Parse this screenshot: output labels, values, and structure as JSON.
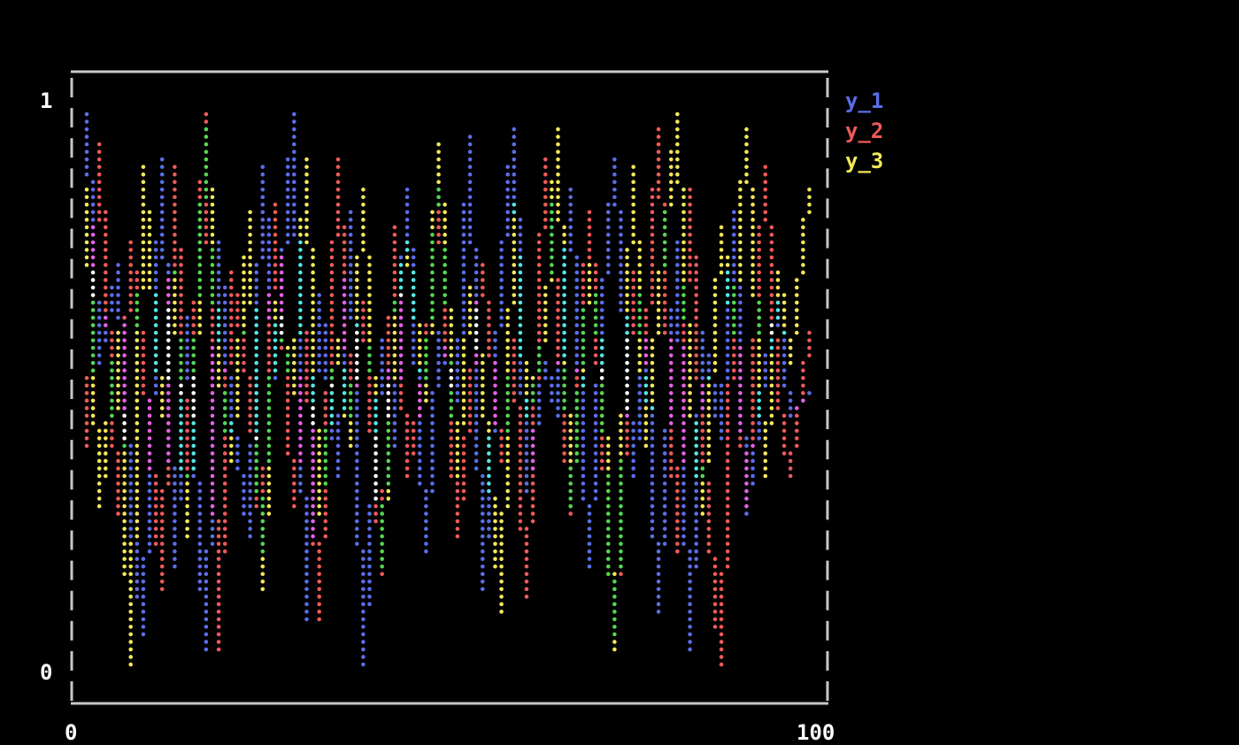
{
  "chart_data": {
    "type": "line",
    "title": "",
    "xlabel": "",
    "ylabel": "",
    "xlim": [
      0,
      100
    ],
    "ylim": [
      0,
      1
    ],
    "x_ticks": [
      "0",
      "100"
    ],
    "y_ticks": [
      "1",
      "0"
    ],
    "grid": false,
    "legend_placement": "top-right",
    "x": [
      0,
      2,
      4,
      6,
      8,
      10,
      12,
      14,
      16,
      18,
      20,
      22,
      24,
      26,
      28,
      30,
      32,
      34,
      36,
      38,
      40,
      42,
      44,
      46,
      48,
      50,
      52,
      54,
      56,
      58,
      60,
      62,
      64,
      66,
      68,
      70,
      72,
      74,
      76,
      78,
      80,
      82,
      84,
      86,
      88,
      90,
      92,
      94,
      96,
      98
    ],
    "series": [
      {
        "name": "y_1",
        "color": "#5b6ee8",
        "values": [
          0.98,
          0.55,
          0.72,
          0.3,
          0.08,
          0.9,
          0.2,
          0.62,
          0.05,
          0.75,
          0.45,
          0.25,
          0.88,
          0.52,
          0.97,
          0.1,
          0.66,
          0.35,
          0.8,
          0.02,
          0.58,
          0.4,
          0.85,
          0.22,
          0.6,
          0.48,
          0.93,
          0.15,
          0.7,
          0.95,
          0.33,
          0.55,
          0.45,
          0.85,
          0.2,
          0.62,
          0.9,
          0.35,
          0.58,
          0.12,
          0.75,
          0.05,
          0.6,
          0.42,
          0.8,
          0.28,
          0.55,
          0.65,
          0.45,
          0.5
        ]
      },
      {
        "name": "y_2",
        "color": "#f05a5a",
        "values": [
          0.4,
          0.92,
          0.28,
          0.75,
          0.55,
          0.15,
          0.88,
          0.35,
          0.98,
          0.05,
          0.7,
          0.5,
          0.22,
          0.82,
          0.3,
          0.6,
          0.1,
          0.9,
          0.45,
          0.65,
          0.18,
          0.78,
          0.35,
          0.55,
          0.85,
          0.25,
          0.48,
          0.72,
          0.38,
          0.58,
          0.14,
          0.9,
          0.62,
          0.28,
          0.8,
          0.45,
          0.08,
          0.7,
          0.55,
          0.95,
          0.22,
          0.85,
          0.4,
          0.02,
          0.68,
          0.3,
          0.88,
          0.5,
          0.35,
          0.6
        ]
      },
      {
        "name": "y_3",
        "color": "#f3e85a",
        "values": [
          0.85,
          0.3,
          0.6,
          0.02,
          0.88,
          0.45,
          0.7,
          0.25,
          0.95,
          0.55,
          0.38,
          0.8,
          0.15,
          0.65,
          0.5,
          0.9,
          0.28,
          0.58,
          0.4,
          0.85,
          0.2,
          0.62,
          0.75,
          0.48,
          0.92,
          0.35,
          0.68,
          0.52,
          0.12,
          0.82,
          0.45,
          0.6,
          0.95,
          0.3,
          0.72,
          0.55,
          0.05,
          0.88,
          0.4,
          0.65,
          0.98,
          0.5,
          0.28,
          0.78,
          0.6,
          0.95,
          0.35,
          0.7,
          0.55,
          0.85
        ]
      }
    ],
    "overlap_colors": {
      "y_1+y_2": "#e660e6",
      "y_1+y_3": "#55e6e6",
      "y_2+y_3": "#55d655",
      "all": "#ffffff"
    }
  }
}
